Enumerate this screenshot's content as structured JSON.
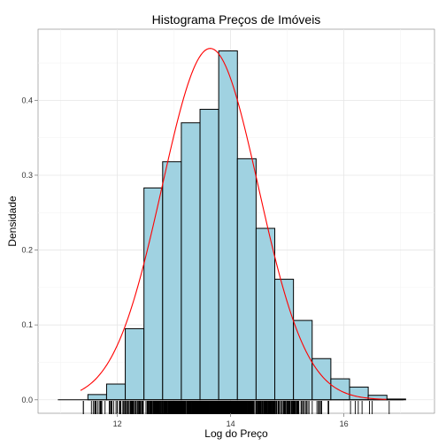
{
  "chart_data": {
    "type": "bar",
    "title": "Histograma Preços de Imóveis",
    "xlabel": "Log do Preço",
    "ylabel": "Densidade",
    "xlim": [
      10.6,
      17.6
    ],
    "ylim": [
      -0.018,
      0.495
    ],
    "bin_width": 0.33,
    "bins": [
      {
        "x0": 11.15,
        "density": 0.0
      },
      {
        "x0": 11.48,
        "density": 0.007
      },
      {
        "x0": 11.81,
        "density": 0.021
      },
      {
        "x0": 12.14,
        "density": 0.095
      },
      {
        "x0": 12.47,
        "density": 0.283
      },
      {
        "x0": 12.8,
        "density": 0.318
      },
      {
        "x0": 13.13,
        "density": 0.37
      },
      {
        "x0": 13.46,
        "density": 0.388
      },
      {
        "x0": 13.79,
        "density": 0.466
      },
      {
        "x0": 14.12,
        "density": 0.322
      },
      {
        "x0": 14.45,
        "density": 0.229
      },
      {
        "x0": 14.78,
        "density": 0.161
      },
      {
        "x0": 15.11,
        "density": 0.106
      },
      {
        "x0": 15.44,
        "density": 0.055
      },
      {
        "x0": 15.77,
        "density": 0.028
      },
      {
        "x0": 16.1,
        "density": 0.017
      },
      {
        "x0": 16.43,
        "density": 0.006
      },
      {
        "x0": 16.76,
        "density": 0.001
      }
    ],
    "baseline": [
      10.95,
      17.05
    ],
    "density_curve": {
      "mean": 13.64,
      "sd": 0.85,
      "x_range": [
        11.35,
        16.75
      ],
      "color": "#ff0000"
    },
    "rug": {
      "x_range": [
        11.4,
        16.8
      ]
    },
    "x_ticks": [
      12,
      14,
      16
    ],
    "y_ticks": [
      0.0,
      0.1,
      0.2,
      0.3,
      0.4
    ],
    "x_tick_labels": [
      "12",
      "14",
      "16"
    ],
    "y_tick_labels": [
      "0.0",
      "0.1",
      "0.2",
      "0.3",
      "0.4"
    ],
    "bar_fill": "#a0d2e1",
    "bar_stroke": "#000000",
    "grid": true,
    "legend": "none"
  }
}
